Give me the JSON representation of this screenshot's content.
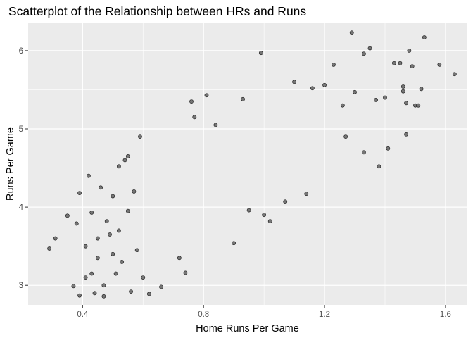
{
  "chart_data": {
    "type": "scatter",
    "title": "Scatterplot of the Relationship between HRs and Runs",
    "xlabel": "Home Runs Per Game",
    "ylabel": "Runs Per Game",
    "xlim": [
      0.22,
      1.67
    ],
    "ylim": [
      2.75,
      6.35
    ],
    "xticks": [
      0.4,
      0.8,
      1.2,
      1.6
    ],
    "xtick_labels": [
      "0.4",
      "0.8",
      "1.2",
      "1.6"
    ],
    "yticks": [
      3,
      4,
      5,
      6
    ],
    "ytick_labels": [
      "3",
      "4",
      "5",
      "6"
    ],
    "grid": true,
    "point_color": "#000000",
    "point_alpha": 0.5,
    "panel_background": "#ebebeb",
    "gridline_color": "#ffffff",
    "points": [
      [
        0.29,
        3.47
      ],
      [
        0.31,
        3.6
      ],
      [
        0.35,
        3.89
      ],
      [
        0.37,
        2.99
      ],
      [
        0.38,
        3.79
      ],
      [
        0.39,
        4.18
      ],
      [
        0.39,
        2.87
      ],
      [
        0.41,
        3.1
      ],
      [
        0.41,
        3.5
      ],
      [
        0.42,
        4.4
      ],
      [
        0.43,
        3.93
      ],
      [
        0.43,
        3.15
      ],
      [
        0.44,
        2.9
      ],
      [
        0.45,
        3.6
      ],
      [
        0.45,
        3.35
      ],
      [
        0.46,
        4.25
      ],
      [
        0.47,
        3.0
      ],
      [
        0.47,
        2.86
      ],
      [
        0.48,
        3.82
      ],
      [
        0.49,
        3.65
      ],
      [
        0.5,
        4.14
      ],
      [
        0.5,
        3.4
      ],
      [
        0.51,
        3.15
      ],
      [
        0.52,
        4.52
      ],
      [
        0.52,
        3.7
      ],
      [
        0.53,
        3.3
      ],
      [
        0.54,
        4.6
      ],
      [
        0.55,
        4.65
      ],
      [
        0.55,
        3.95
      ],
      [
        0.56,
        2.92
      ],
      [
        0.57,
        4.2
      ],
      [
        0.58,
        3.45
      ],
      [
        0.59,
        4.9
      ],
      [
        0.6,
        3.1
      ],
      [
        0.62,
        2.89
      ],
      [
        0.66,
        2.98
      ],
      [
        0.72,
        3.35
      ],
      [
        0.74,
        3.16
      ],
      [
        0.76,
        5.35
      ],
      [
        0.77,
        5.15
      ],
      [
        0.81,
        5.43
      ],
      [
        0.84,
        5.05
      ],
      [
        0.9,
        3.54
      ],
      [
        0.93,
        5.38
      ],
      [
        0.95,
        3.96
      ],
      [
        0.99,
        5.97
      ],
      [
        1.0,
        3.9
      ],
      [
        1.02,
        3.82
      ],
      [
        1.07,
        4.07
      ],
      [
        1.1,
        5.6
      ],
      [
        1.14,
        4.17
      ],
      [
        1.16,
        5.52
      ],
      [
        1.2,
        5.56
      ],
      [
        1.23,
        5.82
      ],
      [
        1.26,
        5.3
      ],
      [
        1.27,
        4.9
      ],
      [
        1.29,
        6.23
      ],
      [
        1.3,
        5.47
      ],
      [
        1.33,
        5.96
      ],
      [
        1.33,
        4.7
      ],
      [
        1.35,
        6.03
      ],
      [
        1.37,
        5.37
      ],
      [
        1.38,
        4.52
      ],
      [
        1.4,
        5.4
      ],
      [
        1.41,
        4.75
      ],
      [
        1.43,
        5.84
      ],
      [
        1.45,
        5.84
      ],
      [
        1.46,
        5.48
      ],
      [
        1.46,
        5.54
      ],
      [
        1.47,
        5.33
      ],
      [
        1.47,
        4.93
      ],
      [
        1.48,
        6.0
      ],
      [
        1.49,
        5.8
      ],
      [
        1.5,
        5.3
      ],
      [
        1.51,
        5.3
      ],
      [
        1.52,
        5.51
      ],
      [
        1.53,
        6.17
      ],
      [
        1.58,
        5.82
      ],
      [
        1.63,
        5.7
      ]
    ]
  }
}
